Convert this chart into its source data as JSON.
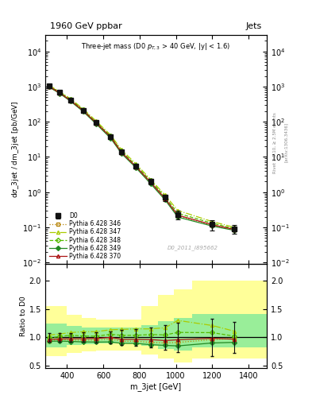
{
  "title_top": "1960 GeV ppbar",
  "title_right": "Jets",
  "plot_title": "Three-jet mass (D0 p_{T,3} > 40 GeV, |y| < 1.6)",
  "ylabel_main": "dσ_3jet / dm_3jet [pb/GeV]",
  "ylabel_ratio": "Ratio to D0",
  "xlabel": "m_3jet [GeV]",
  "watermark": "D0_2011_I895662",
  "right_label": "Rivet 3.1.10, ≥ 2.5M events",
  "arxiv_label": "[arXiv:1306.3436]",
  "x_data": [
    300,
    360,
    420,
    490,
    560,
    640,
    700,
    780,
    860,
    940,
    1010,
    1200,
    1320
  ],
  "d0_y": [
    1050,
    680,
    410,
    210,
    95,
    37,
    14,
    5.5,
    2.0,
    0.7,
    0.23,
    0.12,
    0.09
  ],
  "d0_yerr_lo": [
    80,
    55,
    32,
    18,
    9,
    4,
    1.8,
    0.8,
    0.35,
    0.15,
    0.06,
    0.04,
    0.025
  ],
  "d0_yerr_hi": [
    80,
    55,
    32,
    18,
    9,
    4,
    1.8,
    0.8,
    0.35,
    0.15,
    0.06,
    0.04,
    0.025
  ],
  "py346_y": [
    990,
    650,
    390,
    200,
    90,
    36,
    13,
    5.1,
    1.82,
    0.63,
    0.21,
    0.115,
    0.088
  ],
  "py347_y": [
    1090,
    720,
    445,
    230,
    105,
    42,
    16,
    6.3,
    2.3,
    0.82,
    0.3,
    0.145,
    0.1
  ],
  "py348_y": [
    1040,
    690,
    425,
    215,
    97,
    39,
    14.5,
    5.7,
    2.1,
    0.73,
    0.25,
    0.13,
    0.092
  ],
  "py349_y": [
    975,
    635,
    380,
    193,
    87,
    34,
    12.5,
    4.9,
    1.74,
    0.6,
    0.195,
    0.108,
    0.082
  ],
  "py370_y": [
    1010,
    660,
    400,
    205,
    93,
    37,
    13.5,
    5.3,
    1.92,
    0.66,
    0.22,
    0.118,
    0.087
  ],
  "ratio_py346_x": [
    300,
    360,
    420,
    490,
    560,
    640,
    700,
    780,
    860,
    940,
    1010,
    1200,
    1320
  ],
  "ratio_py346": [
    0.94,
    0.96,
    0.95,
    0.95,
    0.95,
    0.97,
    0.93,
    0.93,
    0.91,
    0.9,
    0.91,
    0.96,
    0.98
  ],
  "ratio_py347": [
    1.04,
    1.06,
    1.085,
    1.1,
    1.1,
    1.135,
    1.14,
    1.15,
    1.15,
    1.17,
    1.3,
    1.21,
    1.11
  ],
  "ratio_py348": [
    0.99,
    1.015,
    1.037,
    1.024,
    1.02,
    1.054,
    1.036,
    1.036,
    1.05,
    1.043,
    1.087,
    1.083,
    1.022
  ],
  "ratio_py349": [
    0.929,
    0.934,
    0.927,
    0.919,
    0.916,
    0.919,
    0.893,
    0.891,
    0.87,
    0.857,
    0.848,
    0.9,
    0.911
  ],
  "ratio_py370": [
    0.962,
    0.971,
    0.976,
    0.976,
    0.979,
    1.0,
    0.964,
    0.964,
    0.96,
    0.943,
    0.957,
    0.983,
    0.967
  ],
  "ratio_d0_x": [
    300,
    360,
    420,
    490,
    560,
    640,
    700,
    780,
    860,
    940,
    1010,
    1200,
    1320
  ],
  "ratio_d0_err": [
    0.076,
    0.081,
    0.078,
    0.086,
    0.095,
    0.108,
    0.129,
    0.145,
    0.175,
    0.214,
    0.261,
    0.333,
    0.278
  ],
  "band_x_edges": [
    280,
    400,
    480,
    560,
    640,
    720,
    810,
    900,
    990,
    1090,
    1500
  ],
  "band_yellow_lo": [
    0.67,
    0.72,
    0.75,
    0.77,
    0.77,
    0.77,
    0.7,
    0.62,
    0.55,
    0.62
  ],
  "band_yellow_hi": [
    1.55,
    1.4,
    1.35,
    1.32,
    1.32,
    1.32,
    1.55,
    1.75,
    1.85,
    2.0
  ],
  "band_green_lo": [
    0.82,
    0.87,
    0.88,
    0.89,
    0.89,
    0.89,
    0.85,
    0.8,
    0.77,
    0.82
  ],
  "band_green_hi": [
    1.24,
    1.2,
    1.18,
    1.17,
    1.17,
    1.17,
    1.22,
    1.28,
    1.35,
    1.42
  ],
  "color_d0": "#111111",
  "color_346": "#b8860b",
  "color_347": "#aacc00",
  "color_348": "#55bb00",
  "color_349": "#228822",
  "color_370": "#aa1111",
  "color_yellow": "#ffff99",
  "color_green": "#99ee99",
  "xlim": [
    280,
    1500
  ],
  "ylim_main": [
    0.009,
    30000
  ],
  "ylim_ratio": [
    0.45,
    2.3
  ],
  "ratio_yticks": [
    0.5,
    1.0,
    1.5,
    2.0
  ]
}
